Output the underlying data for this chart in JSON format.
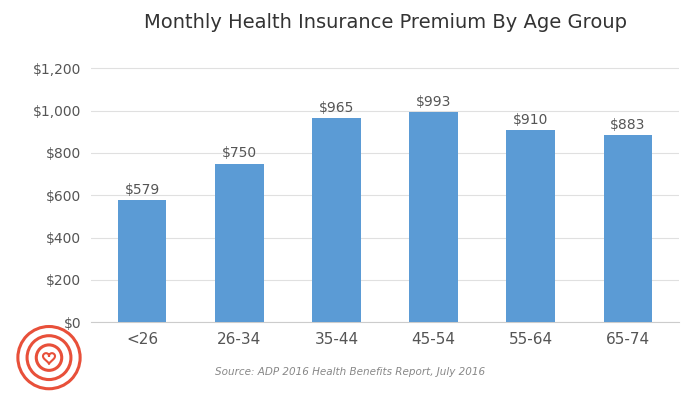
{
  "title": "Monthly Health Insurance Premium By Age Group",
  "categories": [
    "<26",
    "26-34",
    "35-44",
    "45-54",
    "55-64",
    "65-74"
  ],
  "values": [
    579,
    750,
    965,
    993,
    910,
    883
  ],
  "bar_color": "#5b9bd5",
  "bar_labels": [
    "$579",
    "$750",
    "$965",
    "$993",
    "$910",
    "$883"
  ],
  "yticks": [
    0,
    200,
    400,
    600,
    800,
    1000,
    1200
  ],
  "ytick_labels": [
    "$0",
    "$200",
    "$400",
    "$600",
    "$800",
    "$1,000",
    "$1,200"
  ],
  "ylim": [
    0,
    1300
  ],
  "source_text": "Source: ADP 2016 Health Benefits Report, July 2016",
  "background_color": "#ffffff",
  "logo_color": "#e8503a",
  "title_fontsize": 14,
  "label_fontsize": 10,
  "tick_fontsize": 10
}
